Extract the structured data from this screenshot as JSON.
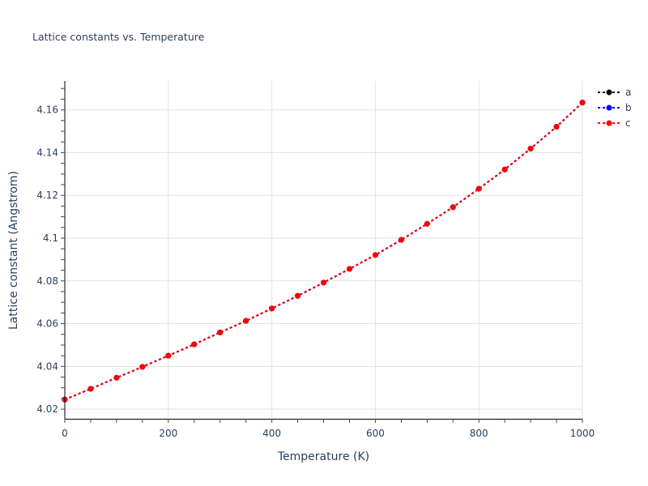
{
  "chart_data": {
    "type": "line",
    "title": "Lattice constants vs. Temperature",
    "xlabel": "Temperature (K)",
    "ylabel": "Lattice constant (Angstrom)",
    "xlim": [
      0,
      1000
    ],
    "ylim": [
      4.0155,
      4.1735
    ],
    "x_ticks": [
      0,
      200,
      400,
      600,
      800,
      1000
    ],
    "x_tick_labels": [
      "0",
      "200",
      "400",
      "600",
      "800",
      "1000"
    ],
    "x_minor_step": 50,
    "y_ticks": [
      4.02,
      4.04,
      4.06,
      4.08,
      4.1,
      4.12,
      4.14,
      4.16
    ],
    "y_tick_labels": [
      "4.02",
      "4.04",
      "4.06",
      "4.08",
      "4.1",
      "4.12",
      "4.14",
      "4.16"
    ],
    "y_minor_step": 0.005,
    "grid": true,
    "legend_position": "top-right-outside",
    "x": [
      0,
      50,
      100,
      150,
      200,
      250,
      300,
      350,
      400,
      450,
      500,
      550,
      600,
      650,
      700,
      750,
      800,
      850,
      900,
      950,
      1000
    ],
    "series": [
      {
        "name": "a",
        "color": "#000000",
        "line_style": "dot",
        "marker": "circle",
        "values": [
          4.0245,
          4.0295,
          4.0347,
          4.0398,
          4.045,
          4.0503,
          4.0559,
          4.0613,
          4.0671,
          4.073,
          4.0792,
          4.0856,
          4.0921,
          4.0992,
          4.1067,
          4.1145,
          4.1231,
          4.1321,
          4.1419,
          4.1521,
          4.1634
        ]
      },
      {
        "name": "b",
        "color": "#0000ff",
        "line_style": "dot",
        "marker": "circle",
        "values": [
          4.0245,
          4.0295,
          4.0347,
          4.0398,
          4.045,
          4.0503,
          4.0559,
          4.0613,
          4.0671,
          4.073,
          4.0792,
          4.0856,
          4.0921,
          4.0992,
          4.1067,
          4.1145,
          4.1231,
          4.1321,
          4.1419,
          4.1521,
          4.1634
        ]
      },
      {
        "name": "c",
        "color": "#ff0000",
        "line_style": "dot",
        "marker": "circle",
        "values": [
          4.0245,
          4.0295,
          4.0347,
          4.0398,
          4.045,
          4.0503,
          4.0559,
          4.0613,
          4.0671,
          4.073,
          4.0792,
          4.0856,
          4.0921,
          4.0992,
          4.1067,
          4.1145,
          4.1231,
          4.1321,
          4.1419,
          4.1521,
          4.1634
        ]
      }
    ]
  }
}
